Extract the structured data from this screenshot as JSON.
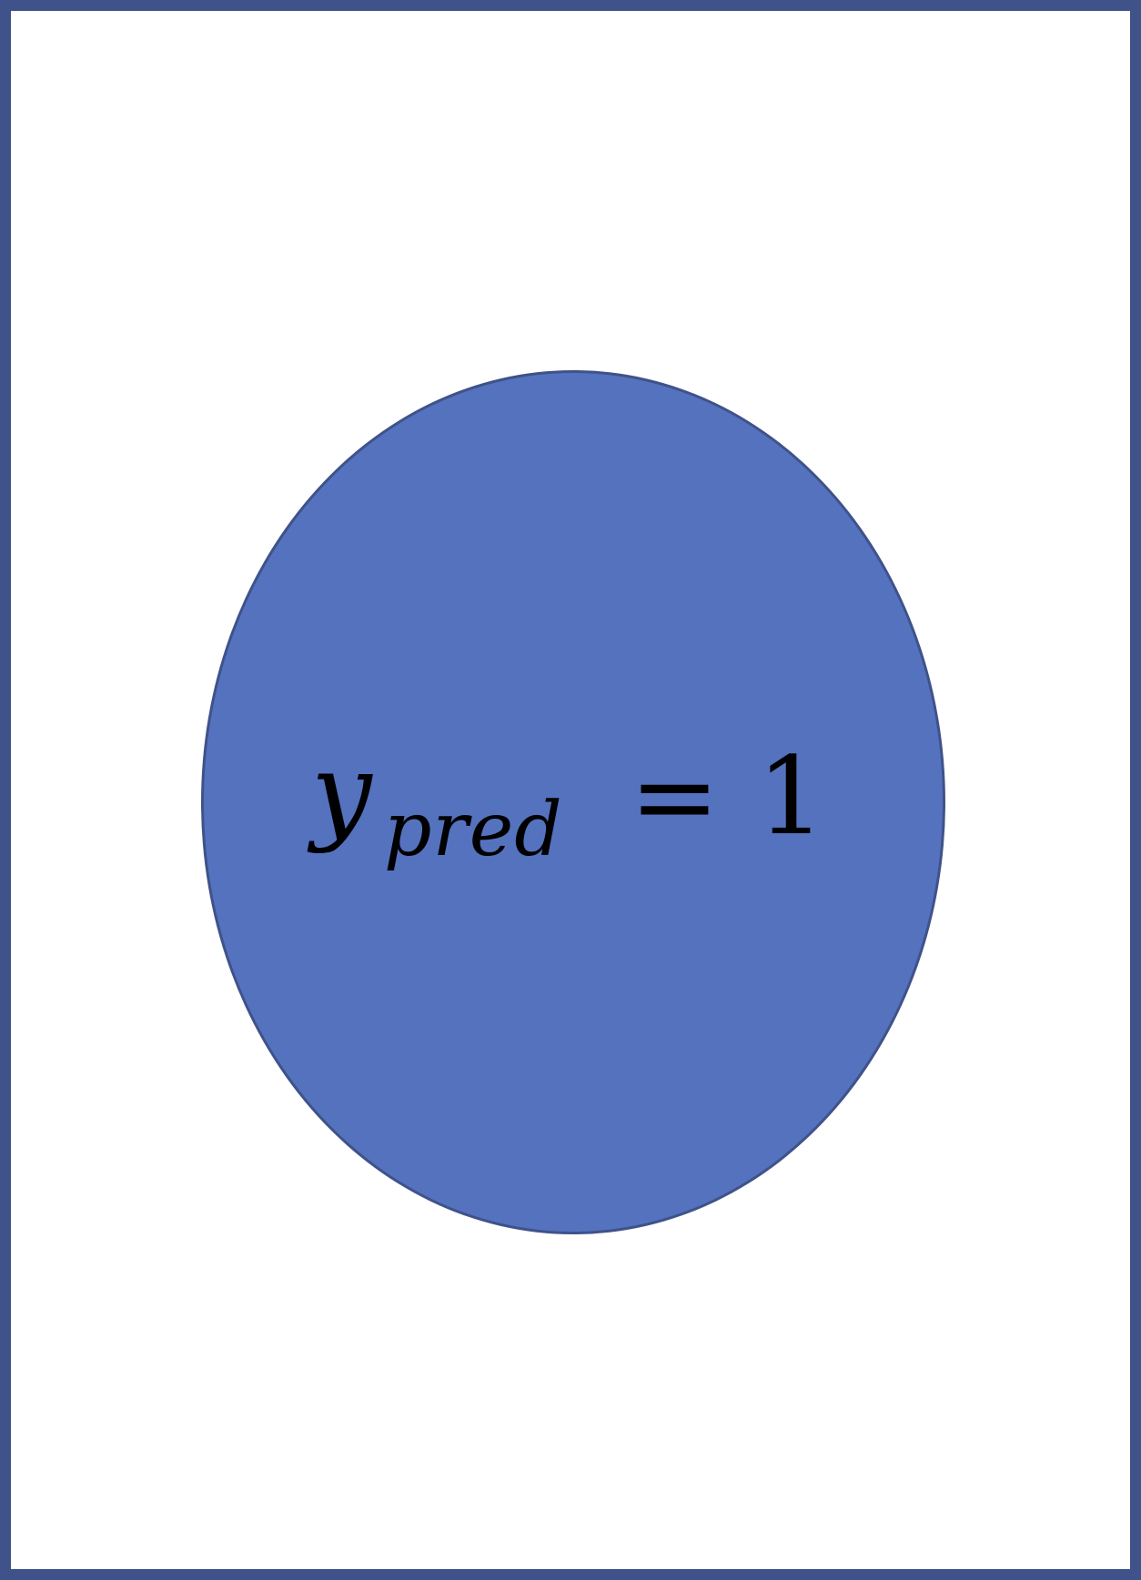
{
  "diagram": {
    "node": {
      "variable": "y",
      "subscript": "pred",
      "operator": "=",
      "value": "1",
      "fill_color": "#5572bf",
      "stroke_color": "#3f5289"
    },
    "frame": {
      "border_color": "#3f5289",
      "background_color": "#ffffff"
    }
  }
}
